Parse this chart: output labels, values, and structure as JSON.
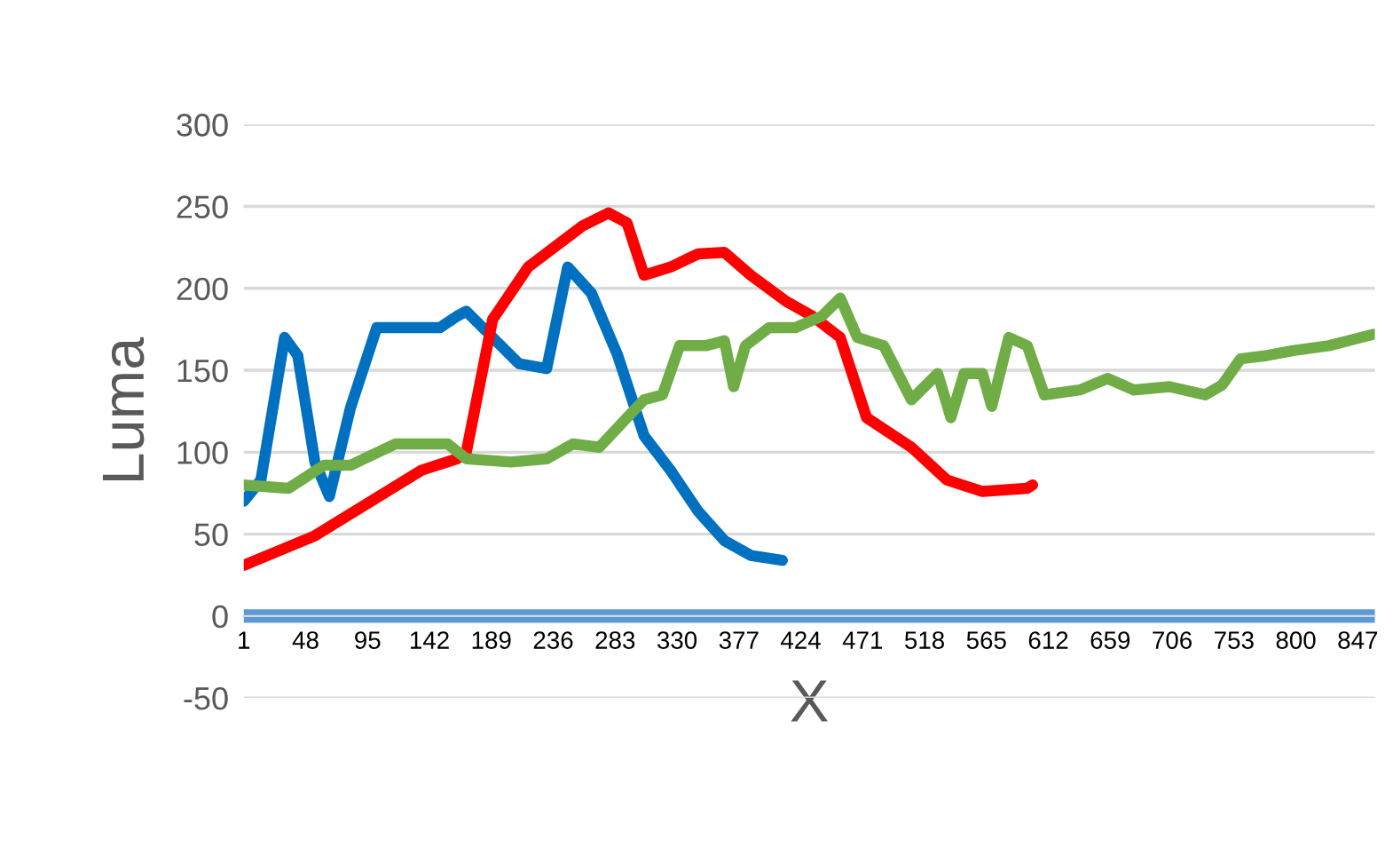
{
  "chart_data": {
    "type": "line",
    "xlabel": "X",
    "ylabel": "Luma",
    "xlim": [
      1,
      860
    ],
    "xticks": [
      1,
      48,
      95,
      142,
      189,
      236,
      283,
      330,
      377,
      424,
      471,
      518,
      565,
      612,
      659,
      706,
      753,
      800,
      847
    ],
    "ylim": [
      -50,
      300
    ],
    "yticks": [
      -50,
      0,
      50,
      100,
      150,
      200,
      250,
      300
    ],
    "grid": "y",
    "legend": false,
    "marker": "none",
    "line_style": "solid",
    "series": [
      {
        "color": "#0070c0",
        "x": [
          1,
          14,
          32,
          42,
          55,
          66,
          82,
          102,
          123,
          150,
          163,
          170,
          190,
          210,
          231,
          247,
          265,
          285,
          305,
          325,
          346,
          366,
          386,
          410
        ],
        "values": [
          70,
          83,
          170,
          159,
          94,
          73,
          127,
          176,
          176,
          176,
          183,
          186,
          170,
          154,
          151,
          213,
          197,
          159,
          110,
          89,
          64,
          46,
          37,
          34
        ]
      },
      {
        "color": "#ff0000",
        "x": [
          1,
          55,
          136,
          163,
          170,
          190,
          217,
          258,
          278,
          292,
          305,
          325,
          346,
          366,
          386,
          413,
          433,
          454,
          474,
          508,
          535,
          562,
          596,
          600
        ],
        "values": [
          31,
          49,
          89,
          96,
          100,
          181,
          213,
          238,
          246,
          240,
          208,
          213,
          221,
          222,
          208,
          192,
          183,
          170,
          121,
          103,
          83,
          76,
          78,
          80
        ]
      },
      {
        "color": "#70ad47",
        "x": [
          1,
          35,
          62,
          82,
          116,
          156,
          170,
          204,
          231,
          251,
          271,
          292,
          305,
          319,
          332,
          352,
          366,
          373,
          382,
          400,
          420,
          440,
          454,
          467,
          487,
          508,
          528,
          538,
          548,
          562,
          569,
          582,
          596,
          609,
          636,
          657,
          677,
          704,
          731,
          744,
          758,
          778,
          798,
          825,
          859
        ],
        "values": [
          80,
          78,
          92,
          92,
          105,
          105,
          96,
          94,
          96,
          105,
          103,
          121,
          132,
          135,
          165,
          165,
          168,
          140,
          165,
          176,
          176,
          183,
          194,
          170,
          165,
          132,
          148,
          121,
          148,
          148,
          128,
          170,
          165,
          135,
          138,
          145,
          138,
          140,
          135,
          141,
          157,
          159,
          162,
          165,
          172
        ]
      },
      {
        "color": "#5b9bd5",
        "x": [
          1,
          860
        ],
        "values": [
          0,
          0
        ]
      }
    ]
  }
}
